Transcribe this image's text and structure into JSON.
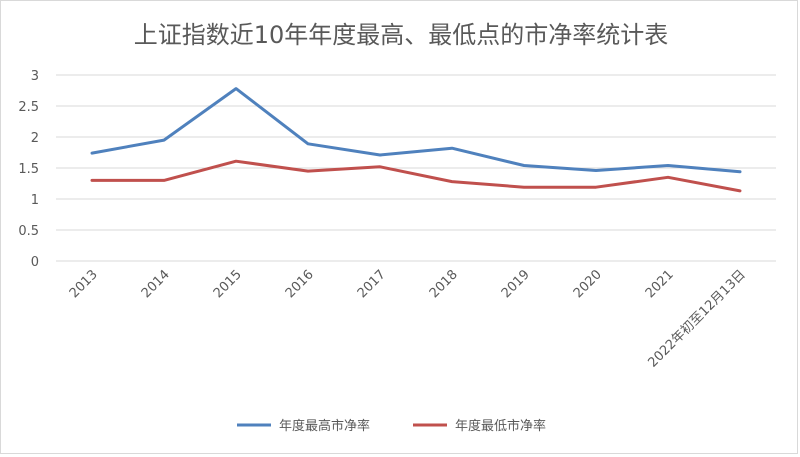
{
  "chart_data": {
    "type": "line",
    "title": "上证指数近10年年度最高、最低点的市净率统计表",
    "categories": [
      "2013",
      "2014",
      "2015",
      "2016",
      "2017",
      "2018",
      "2019",
      "2020",
      "2021",
      "2022年初至12月13日"
    ],
    "series": [
      {
        "name": "年度最高市净率",
        "color": "#4f81bd",
        "values": [
          1.74,
          1.95,
          2.78,
          1.89,
          1.71,
          1.82,
          1.54,
          1.46,
          1.54,
          1.44
        ]
      },
      {
        "name": "年度最低市净率",
        "color": "#c0504d",
        "values": [
          1.3,
          1.3,
          1.61,
          1.45,
          1.52,
          1.28,
          1.19,
          1.19,
          1.35,
          1.13
        ]
      }
    ],
    "yticks": [
      "3",
      "2.5",
      "2",
      "1.5",
      "1",
      "0.5",
      "0"
    ],
    "ylim": [
      0,
      3
    ],
    "grid": true,
    "legend": "bottom"
  }
}
